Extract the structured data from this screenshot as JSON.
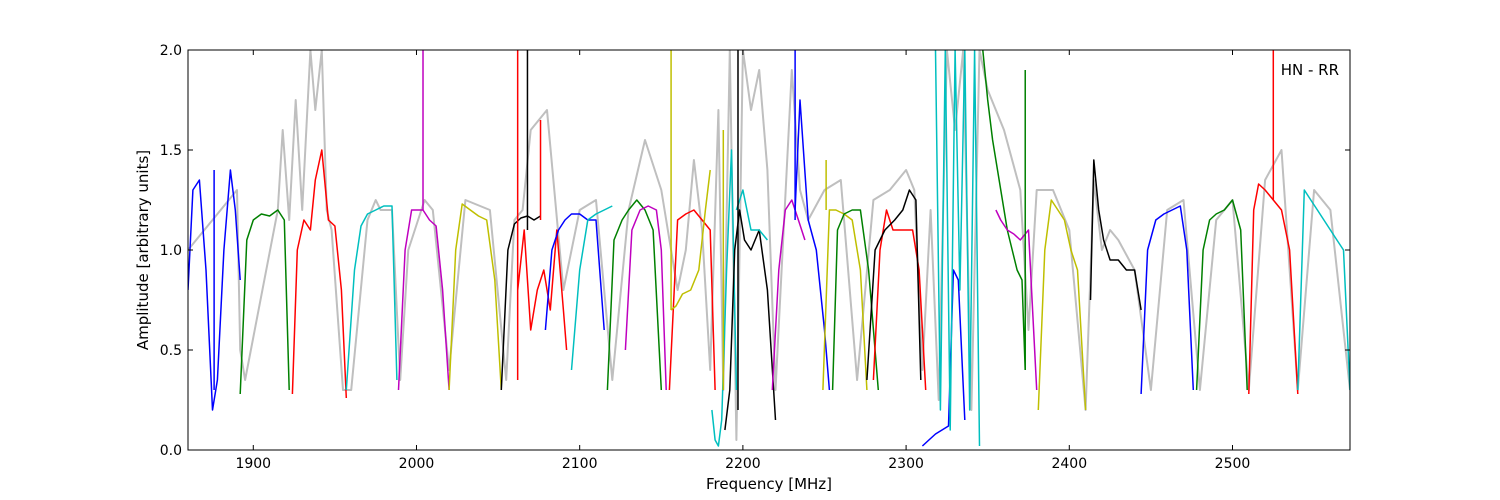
{
  "chart_data": {
    "type": "line",
    "title": "",
    "annotation": "HN - RR",
    "xlabel": "Frequency [MHz]",
    "ylabel": "Amplitude [arbitrary units]",
    "xlim": [
      1860,
      2572
    ],
    "ylim": [
      0.0,
      2.0
    ],
    "xticks": [
      1900,
      2000,
      2100,
      2200,
      2300,
      2400,
      2500
    ],
    "xtick_labels": [
      "1900",
      "2000",
      "2100",
      "2200",
      "2300",
      "2400",
      "2500"
    ],
    "yticks": [
      0.0,
      0.5,
      1.0,
      1.5,
      2.0
    ],
    "ytick_labels": [
      "0.0",
      "0.5",
      "1.0",
      "1.5",
      "2.0"
    ],
    "grid": false,
    "colors": {
      "background_trace": "#bfbfbf",
      "blue": "#0000ff",
      "green": "#008000",
      "red": "#ff0000",
      "cyan": "#00bfbf",
      "magenta": "#bf00bf",
      "yellow": "#bfbf00",
      "black": "#000000"
    },
    "background_trace": {
      "x": [
        1860,
        1890,
        1892,
        1895,
        1915,
        1918,
        1922,
        1926,
        1930,
        1935,
        1938,
        1942,
        1945,
        1948,
        1955,
        1960,
        1970,
        1975,
        1978,
        1985,
        1990,
        1995,
        2005,
        2010,
        2020,
        2030,
        2045,
        2055,
        2060,
        2065,
        2070,
        2080,
        2090,
        2100,
        2110,
        2120,
        2130,
        2140,
        2150,
        2160,
        2165,
        2170,
        2175,
        2180,
        2185,
        2188,
        2192,
        2196,
        2200,
        2205,
        2210,
        2215,
        2220,
        2230,
        2235,
        2240,
        2250,
        2260,
        2270,
        2280,
        2290,
        2300,
        2305,
        2310,
        2315,
        2320,
        2325,
        2330,
        2335,
        2340,
        2345,
        2350,
        2360,
        2370,
        2375,
        2380,
        2390,
        2400,
        2410,
        2415,
        2420,
        2425,
        2430,
        2440,
        2450,
        2460,
        2470,
        2480,
        2490,
        2500,
        2510,
        2520,
        2530,
        2540,
        2550,
        2560,
        2572
      ],
      "y": [
        1.0,
        1.3,
        0.5,
        0.35,
        1.2,
        1.6,
        1.15,
        1.75,
        1.2,
        2.0,
        1.7,
        2.0,
        1.2,
        1.1,
        0.3,
        0.3,
        1.15,
        1.25,
        1.2,
        1.2,
        0.35,
        1.0,
        1.25,
        1.2,
        0.4,
        1.25,
        1.2,
        0.35,
        1.15,
        1.2,
        1.6,
        1.7,
        0.8,
        1.2,
        1.25,
        0.35,
        1.2,
        1.55,
        1.3,
        0.8,
        1.0,
        1.45,
        1.1,
        0.4,
        1.7,
        0.3,
        2.0,
        0.05,
        2.0,
        1.7,
        1.9,
        1.4,
        0.3,
        1.9,
        1.3,
        1.15,
        1.3,
        1.35,
        0.35,
        1.25,
        1.3,
        1.4,
        1.3,
        0.4,
        1.2,
        0.25,
        2.0,
        1.6,
        2.0,
        0.2,
        2.0,
        1.8,
        1.6,
        1.3,
        0.6,
        1.3,
        1.3,
        1.1,
        0.2,
        1.35,
        1.0,
        1.1,
        1.05,
        0.9,
        0.3,
        1.2,
        1.25,
        0.3,
        1.15,
        1.25,
        0.3,
        1.35,
        1.5,
        0.3,
        1.3,
        1.2,
        0.3
      ]
    },
    "series": [
      {
        "color": "blue",
        "x": [
          1860,
          1863,
          1867,
          1871,
          1875,
          1878,
          1882,
          1886,
          1889,
          1892
        ],
        "y": [
          0.8,
          1.3,
          1.35,
          0.9,
          0.2,
          0.35,
          1.0,
          1.4,
          1.2,
          0.85
        ]
      },
      {
        "color": "green",
        "x": [
          1892,
          1896,
          1900,
          1905,
          1910,
          1915,
          1919,
          1922
        ],
        "y": [
          0.28,
          1.05,
          1.15,
          1.18,
          1.17,
          1.2,
          1.15,
          0.3
        ]
      },
      {
        "color": "red",
        "x": [
          1924,
          1927,
          1931,
          1935,
          1938,
          1942,
          1946,
          1950,
          1954,
          1957
        ],
        "y": [
          0.28,
          1.0,
          1.15,
          1.1,
          1.35,
          1.5,
          1.15,
          1.12,
          0.8,
          0.26
        ]
      },
      {
        "color": "cyan",
        "x": [
          1957,
          1962,
          1966,
          1970,
          1975,
          1980,
          1985,
          1988
        ],
        "y": [
          0.3,
          0.9,
          1.12,
          1.18,
          1.2,
          1.22,
          1.22,
          0.35
        ]
      },
      {
        "color": "magenta",
        "x": [
          1989,
          1993,
          1997,
          2001,
          2004,
          2008,
          2012,
          2016,
          2020
        ],
        "y": [
          0.3,
          1.0,
          1.2,
          1.2,
          1.2,
          1.15,
          1.12,
          0.8,
          0.3
        ]
      },
      {
        "color": "yellow",
        "x": [
          2020,
          2024,
          2028,
          2033,
          2038,
          2043,
          2048,
          2052
        ],
        "y": [
          0.3,
          1.0,
          1.23,
          1.2,
          1.17,
          1.15,
          0.85,
          0.3
        ]
      },
      {
        "color": "black",
        "x": [
          2052,
          2056,
          2060,
          2064,
          2068,
          2072,
          2076
        ],
        "y": [
          0.3,
          1.0,
          1.13,
          1.16,
          1.17,
          1.15,
          1.17
        ]
      },
      {
        "color": "red",
        "x": [
          2062,
          2066,
          2070,
          2074,
          2078,
          2082,
          2086,
          2090,
          2092
        ],
        "y": [
          0.8,
          1.1,
          0.6,
          0.8,
          0.9,
          0.7,
          1.1,
          0.7,
          0.5
        ]
      },
      {
        "color": "blue",
        "x": [
          2079,
          2083,
          2087,
          2091,
          2095,
          2100,
          2105,
          2110,
          2115
        ],
        "y": [
          0.6,
          1.0,
          1.1,
          1.15,
          1.18,
          1.18,
          1.15,
          1.15,
          0.6
        ]
      },
      {
        "color": "cyan",
        "x": [
          2095,
          2100,
          2105,
          2110,
          2115,
          2120
        ],
        "y": [
          0.4,
          0.9,
          1.15,
          1.18,
          1.2,
          1.22
        ]
      },
      {
        "color": "green",
        "x": [
          2117,
          2121,
          2126,
          2130,
          2135,
          2140,
          2145,
          2150
        ],
        "y": [
          0.3,
          1.05,
          1.15,
          1.2,
          1.25,
          1.2,
          1.1,
          0.3
        ]
      },
      {
        "color": "magenta",
        "x": [
          2128,
          2132,
          2137,
          2142,
          2147,
          2150,
          2153
        ],
        "y": [
          0.5,
          1.1,
          1.2,
          1.22,
          1.2,
          1.0,
          0.3
        ]
      },
      {
        "color": "red",
        "x": [
          2155,
          2160,
          2165,
          2170,
          2175,
          2180,
          2183
        ],
        "y": [
          0.3,
          1.15,
          1.18,
          1.2,
          1.15,
          1.1,
          0.3
        ]
      },
      {
        "color": "yellow",
        "x": [
          2156,
          2159,
          2163,
          2168,
          2173,
          2177,
          2180
        ],
        "y": [
          0.7,
          0.72,
          0.78,
          0.8,
          0.9,
          1.2,
          1.4
        ]
      },
      {
        "color": "cyan",
        "x": [
          2181,
          2183,
          2185,
          2187,
          2190,
          2193,
          2196
        ],
        "y": [
          0.2,
          0.05,
          0.02,
          0.15,
          0.9,
          1.5,
          0.3
        ]
      },
      {
        "color": "black",
        "x": [
          2189,
          2192,
          2195,
          2198,
          2201,
          2205,
          2210,
          2215,
          2220
        ],
        "y": [
          0.1,
          0.3,
          1.0,
          1.2,
          1.05,
          1.0,
          1.1,
          0.8,
          0.15
        ]
      },
      {
        "color": "cyan",
        "x": [
          2196,
          2200,
          2205,
          2210,
          2215
        ],
        "y": [
          1.2,
          1.3,
          1.1,
          1.1,
          1.05
        ]
      },
      {
        "color": "magenta",
        "x": [
          2218,
          2222,
          2226,
          2230,
          2234,
          2238
        ],
        "y": [
          0.3,
          0.9,
          1.2,
          1.25,
          1.15,
          1.05
        ]
      },
      {
        "color": "blue",
        "x": [
          2232,
          2235,
          2240,
          2245,
          2250,
          2253
        ],
        "y": [
          1.2,
          1.75,
          1.15,
          1.0,
          0.6,
          0.3
        ]
      },
      {
        "color": "yellow",
        "x": [
          2249,
          2253,
          2257,
          2262,
          2267,
          2272,
          2276
        ],
        "y": [
          0.3,
          1.2,
          1.2,
          1.18,
          1.15,
          0.9,
          0.3
        ]
      },
      {
        "color": "green",
        "x": [
          2255,
          2258,
          2262,
          2267,
          2272,
          2277,
          2283
        ],
        "y": [
          0.3,
          1.1,
          1.18,
          1.2,
          1.2,
          0.9,
          0.3
        ]
      },
      {
        "color": "red",
        "x": [
          2280,
          2284,
          2288,
          2292,
          2296,
          2300,
          2304,
          2308,
          2312
        ],
        "y": [
          0.35,
          1.0,
          1.2,
          1.1,
          1.1,
          1.1,
          1.1,
          0.9,
          0.3
        ]
      },
      {
        "color": "black",
        "x": [
          2276,
          2281,
          2287,
          2293,
          2298,
          2302,
          2306,
          2309
        ],
        "y": [
          0.35,
          1.0,
          1.1,
          1.15,
          1.2,
          1.3,
          1.25,
          0.35
        ]
      },
      {
        "color": "blue",
        "x": [
          2310,
          2314,
          2318,
          2322,
          2326,
          2329,
          2332,
          2336
        ],
        "y": [
          0.02,
          0.05,
          0.08,
          0.1,
          0.12,
          0.9,
          0.85,
          0.15
        ]
      },
      {
        "color": "cyan",
        "x": [
          2318,
          2321,
          2324,
          2327,
          2330,
          2333,
          2336,
          2339,
          2342,
          2345
        ],
        "y": [
          2.0,
          0.2,
          2.0,
          0.1,
          2.0,
          0.8,
          2.0,
          0.2,
          2.0,
          0.02
        ]
      },
      {
        "color": "green",
        "x": [
          2347,
          2350,
          2353,
          2356,
          2359,
          2362,
          2365,
          2368,
          2371,
          2373
        ],
        "y": [
          2.0,
          1.75,
          1.55,
          1.4,
          1.25,
          1.1,
          1.0,
          0.9,
          0.85,
          0.4
        ]
      },
      {
        "color": "magenta",
        "x": [
          2355,
          2358,
          2362,
          2366,
          2370,
          2375,
          2380
        ],
        "y": [
          1.2,
          1.15,
          1.1,
          1.08,
          1.05,
          1.1,
          0.3
        ]
      },
      {
        "color": "yellow",
        "x": [
          2381,
          2385,
          2389,
          2393,
          2397,
          2401,
          2405,
          2410
        ],
        "y": [
          0.2,
          1.0,
          1.25,
          1.2,
          1.15,
          1.0,
          0.9,
          0.2
        ]
      },
      {
        "color": "black",
        "x": [
          2413,
          2415,
          2418,
          2421,
          2425,
          2430,
          2435,
          2440,
          2444
        ],
        "y": [
          0.75,
          1.45,
          1.2,
          1.05,
          0.95,
          0.95,
          0.9,
          0.9,
          0.7
        ]
      },
      {
        "color": "blue",
        "x": [
          2444,
          2448,
          2453,
          2458,
          2463,
          2468,
          2472,
          2476
        ],
        "y": [
          0.28,
          1.0,
          1.15,
          1.18,
          1.2,
          1.22,
          1.0,
          0.3
        ]
      },
      {
        "color": "green",
        "x": [
          2478,
          2482,
          2486,
          2490,
          2495,
          2500,
          2505,
          2509
        ],
        "y": [
          0.3,
          1.0,
          1.15,
          1.18,
          1.2,
          1.25,
          1.1,
          0.3
        ]
      },
      {
        "color": "red",
        "x": [
          2510,
          2513,
          2516,
          2520,
          2525,
          2530,
          2535,
          2540
        ],
        "y": [
          0.28,
          1.2,
          1.33,
          1.3,
          1.25,
          1.2,
          1.0,
          0.28
        ]
      },
      {
        "color": "cyan",
        "x": [
          2540,
          2544,
          2548,
          2552,
          2556,
          2560,
          2564,
          2568,
          2572
        ],
        "y": [
          0.3,
          1.3,
          1.25,
          1.2,
          1.15,
          1.1,
          1.05,
          1.0,
          0.3
        ]
      }
    ],
    "spikes": [
      {
        "color": "blue",
        "x": 1876,
        "y0": 0.3,
        "y1": 1.4
      },
      {
        "color": "magenta",
        "x": 2004,
        "y0": 1.2,
        "y1": 2.0
      },
      {
        "color": "red",
        "x": 2062,
        "y0": 0.35,
        "y1": 2.0
      },
      {
        "color": "black",
        "x": 2068,
        "y0": 1.1,
        "y1": 2.0
      },
      {
        "color": "red",
        "x": 2076,
        "y0": 1.15,
        "y1": 1.65
      },
      {
        "color": "yellow",
        "x": 2156,
        "y0": 0.7,
        "y1": 2.0
      },
      {
        "color": "black",
        "x": 2197,
        "y0": 0.2,
        "y1": 2.0
      },
      {
        "color": "yellow",
        "x": 2188,
        "y0": 0.3,
        "y1": 1.6
      },
      {
        "color": "blue",
        "x": 2232,
        "y0": 1.15,
        "y1": 2.0
      },
      {
        "color": "yellow",
        "x": 2251,
        "y0": 1.2,
        "y1": 1.45
      },
      {
        "color": "red",
        "x": 2525,
        "y0": 1.25,
        "y1": 2.0
      },
      {
        "color": "green",
        "x": 2373,
        "y0": 0.4,
        "y1": 1.9
      }
    ]
  }
}
